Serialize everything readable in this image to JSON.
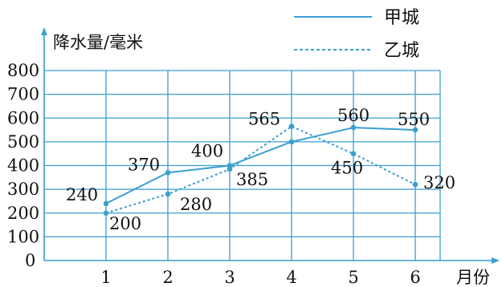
{
  "chart_data": {
    "type": "line",
    "ylabel": "降水量/毫米",
    "xlabel": "月份",
    "x": [
      1,
      2,
      3,
      4,
      5,
      6
    ],
    "ylim": [
      0,
      800
    ],
    "yticks": [
      0,
      100,
      200,
      300,
      400,
      500,
      600,
      700,
      800
    ],
    "grid": true,
    "legend_position": "top-right",
    "series": [
      {
        "name": "甲城",
        "style": "solid",
        "color": "#3a9fd0",
        "values": [
          240,
          370,
          400,
          500,
          560,
          550
        ]
      },
      {
        "name": "乙城",
        "style": "dashed",
        "color": "#3a9fd0",
        "values": [
          200,
          280,
          385,
          565,
          450,
          320
        ]
      }
    ],
    "data_labels": [
      {
        "series": 0,
        "x": 1,
        "text": "240"
      },
      {
        "series": 0,
        "x": 2,
        "text": "370"
      },
      {
        "series": 0,
        "x": 3,
        "text": "400"
      },
      {
        "series": 0,
        "x": 5,
        "text": "560"
      },
      {
        "series": 0,
        "x": 6,
        "text": "550"
      },
      {
        "series": 1,
        "x": 1,
        "text": "200"
      },
      {
        "series": 1,
        "x": 2,
        "text": "280"
      },
      {
        "series": 1,
        "x": 3,
        "text": "385"
      },
      {
        "series": 1,
        "x": 4,
        "text": "565"
      },
      {
        "series": 1,
        "x": 5,
        "text": "450"
      },
      {
        "series": 1,
        "x": 6,
        "text": "320"
      }
    ]
  }
}
